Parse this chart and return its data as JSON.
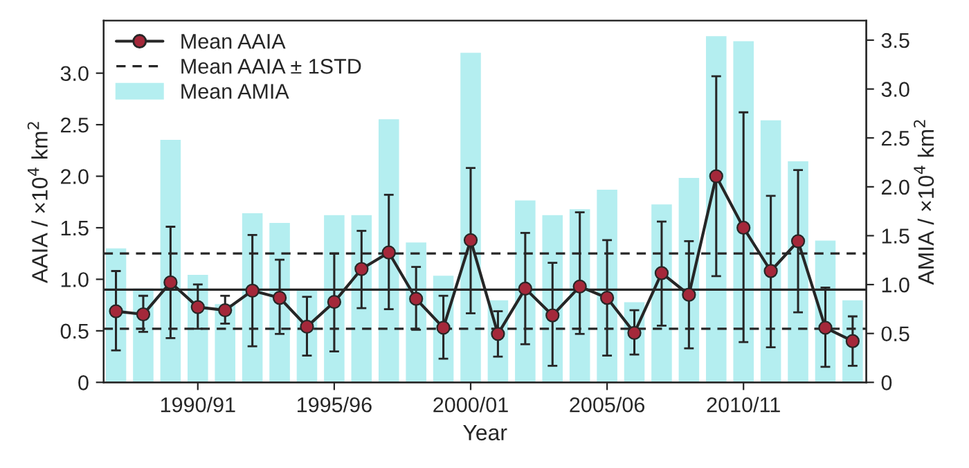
{
  "chart_data": {
    "type": "line",
    "xlabel": "Year",
    "ylabel": "AAIA / ×10$^{4}$ km$^{2}$",
    "y2label": "AMIA / ×10$^{4}$ km$^{2}$",
    "categories": [
      null,
      null,
      null,
      "1990/91",
      null,
      null,
      null,
      null,
      "1995/96",
      null,
      null,
      null,
      null,
      "2000/01",
      null,
      null,
      null,
      null,
      "2005/06",
      null,
      null,
      null,
      null,
      "2010/11",
      null,
      null,
      null,
      null
    ],
    "series": [
      {
        "name": "Mean AMIA",
        "type": "bar",
        "axis": "y2",
        "color": "#b4eef0",
        "values": [
          1.38,
          0.97,
          2.49,
          1.11,
          0.81,
          1.74,
          1.64,
          0.96,
          1.72,
          1.72,
          2.7,
          1.44,
          1.1,
          3.38,
          0.85,
          1.87,
          1.72,
          1.78,
          1.98,
          0.83,
          1.83,
          2.1,
          3.55,
          3.5,
          2.69,
          2.27,
          1.46,
          0.85
        ]
      },
      {
        "name": "Mean AAIA",
        "axis": "y",
        "color": "#262626",
        "marker": "circle",
        "values": [
          0.69,
          0.66,
          0.97,
          0.73,
          0.7,
          0.89,
          0.82,
          0.54,
          0.78,
          1.1,
          1.26,
          0.81,
          0.53,
          1.38,
          0.47,
          0.91,
          0.65,
          0.93,
          0.82,
          0.48,
          1.06,
          0.85,
          2.0,
          1.5,
          1.08,
          1.37,
          0.53,
          0.4
        ],
        "errors": [
          [
            0.31,
            1.08
          ],
          [
            0.49,
            0.84
          ],
          [
            0.43,
            1.51
          ],
          [
            0.52,
            0.95
          ],
          [
            0.57,
            0.84
          ],
          [
            0.35,
            1.43
          ],
          [
            0.47,
            1.19
          ],
          [
            0.26,
            0.83
          ],
          [
            0.3,
            1.25
          ],
          [
            0.72,
            1.47
          ],
          [
            0.71,
            1.82
          ],
          [
            0.51,
            1.12
          ],
          [
            0.23,
            0.84
          ],
          [
            0.67,
            2.08
          ],
          [
            0.25,
            0.69
          ],
          [
            0.37,
            1.45
          ],
          [
            0.16,
            1.16
          ],
          [
            0.47,
            1.65
          ],
          [
            0.26,
            1.38
          ],
          [
            0.27,
            0.7
          ],
          [
            0.55,
            1.56
          ],
          [
            0.33,
            1.37
          ],
          [
            1.03,
            2.97
          ],
          [
            0.39,
            2.62
          ],
          [
            0.34,
            1.81
          ],
          [
            0.68,
            2.06
          ],
          [
            0.15,
            0.92
          ],
          [
            0.16,
            0.64
          ]
        ]
      }
    ],
    "ref_lines": [
      {
        "axis": "y",
        "value": 0.9,
        "color": "#262626",
        "line_style": "solid"
      },
      {
        "axis": "y",
        "value": 1.25,
        "color": "#262626",
        "line_style": "dashed",
        "label": "Mean AAIA ± 1STD"
      },
      {
        "axis": "y",
        "value": 0.52,
        "color": "#262626",
        "line_style": "dashed"
      }
    ],
    "ylim": [
      0,
      3.51
    ],
    "yticks": [
      0,
      0.5,
      {
        "value": 1,
        "label": "1.0"
      },
      1.5,
      {
        "value": 2,
        "label": "2.0"
      },
      2.5,
      {
        "value": 3,
        "label": "3.0"
      }
    ],
    "y2lim": [
      0,
      3.7
    ],
    "y2ticks": [
      0,
      0.5,
      {
        "value": 1,
        "label": "1.0"
      },
      1.5,
      {
        "value": 2,
        "label": "2.0"
      },
      2.5,
      {
        "value": 3,
        "label": "3.0"
      },
      3.5
    ],
    "legend": "top left",
    "grid": false
  }
}
